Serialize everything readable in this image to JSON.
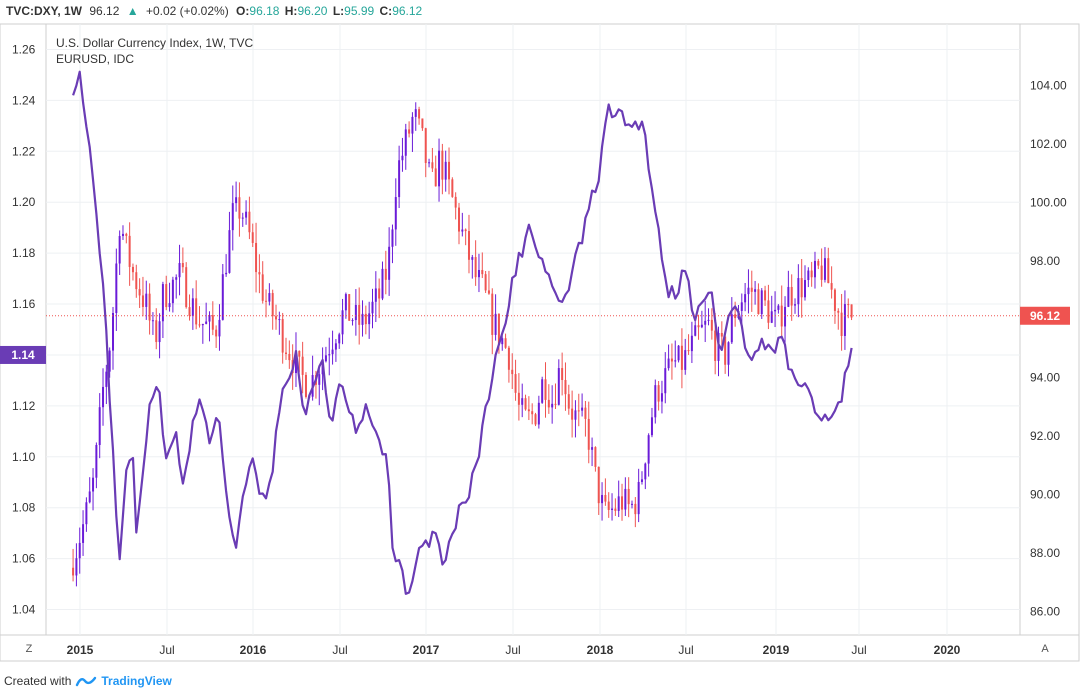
{
  "header": {
    "symbol": "TVC:DXY, 1W",
    "last": "96.12",
    "change": "+0.02 (+0.02%)",
    "o_label": "O:",
    "o": "96.18",
    "h_label": "H:",
    "h": "96.20",
    "l_label": "L:",
    "l": "95.99",
    "c_label": "C:",
    "c": "96.12"
  },
  "legend": {
    "primary": "U.S. Dollar Currency Index, 1W, TVC",
    "secondary": "EURUSD, IDC"
  },
  "footer": {
    "created_with": "Created with",
    "brand": "TradingView"
  },
  "buttons": {
    "zoom": "Z",
    "auto": "A"
  },
  "badges": {
    "left_value": "1.14",
    "right_value": "96.12"
  },
  "colors": {
    "up": "#6a1bd8",
    "down": "#ef5350",
    "eurusd_line": "#6a3cb5",
    "left_badge": "#6a3cb5",
    "right_badge": "#ef5350"
  },
  "chart_data": {
    "type": "line",
    "x_ticks": [
      "2015",
      "Jul",
      "2016",
      "Jul",
      "2017",
      "Jul",
      "2018",
      "Jul",
      "2019",
      "Jul",
      "2020"
    ],
    "left_axis": {
      "ticks": [
        "1.04",
        "1.06",
        "1.08",
        "1.10",
        "1.12",
        "1.14",
        "1.16",
        "1.18",
        "1.20",
        "1.22",
        "1.24",
        "1.26"
      ],
      "range": [
        1.03,
        1.27
      ]
    },
    "right_axis": {
      "ticks": [
        "86.00",
        "88.00",
        "90.00",
        "92.00",
        "94.00",
        "96.00",
        "98.00",
        "100.00",
        "102.00",
        "104.00"
      ],
      "range": [
        85.2,
        106.1
      ]
    },
    "dxy_anchors": [
      [
        2014.96,
        87.5
      ],
      [
        2015.0,
        88.2
      ],
      [
        2015.05,
        89.2
      ],
      [
        2015.1,
        90.5
      ],
      [
        2015.15,
        93.5
      ],
      [
        2015.2,
        95.5
      ],
      [
        2015.25,
        99.5
      ],
      [
        2015.28,
        98.5
      ],
      [
        2015.33,
        97.5
      ],
      [
        2015.4,
        96.5
      ],
      [
        2015.45,
        95.2
      ],
      [
        2015.5,
        96.8
      ],
      [
        2015.6,
        97.5
      ],
      [
        2015.7,
        96.0
      ],
      [
        2015.8,
        95.5
      ],
      [
        2015.9,
        99.5
      ],
      [
        2015.95,
        99.8
      ],
      [
        2016.0,
        98.8
      ],
      [
        2016.05,
        97.5
      ],
      [
        2016.1,
        96.5
      ],
      [
        2016.15,
        96.0
      ],
      [
        2016.2,
        95.3
      ],
      [
        2016.3,
        94.0
      ],
      [
        2016.35,
        93.8
      ],
      [
        2016.45,
        95.0
      ],
      [
        2016.55,
        96.3
      ],
      [
        2016.65,
        95.8
      ],
      [
        2016.75,
        96.8
      ],
      [
        2016.8,
        97.8
      ],
      [
        2016.85,
        101.0
      ],
      [
        2016.95,
        103.0
      ],
      [
        2017.0,
        102.0
      ],
      [
        2017.05,
        100.5
      ],
      [
        2017.1,
        101.5
      ],
      [
        2017.15,
        100.5
      ],
      [
        2017.2,
        99.5
      ],
      [
        2017.3,
        97.5
      ],
      [
        2017.35,
        97.0
      ],
      [
        2017.4,
        96.0
      ],
      [
        2017.5,
        94.8
      ],
      [
        2017.55,
        93.0
      ],
      [
        2017.6,
        92.5
      ],
      [
        2017.65,
        92.8
      ],
      [
        2017.7,
        94.0
      ],
      [
        2017.75,
        93.2
      ],
      [
        2017.8,
        94.5
      ],
      [
        2017.85,
        93.0
      ],
      [
        2017.9,
        92.5
      ],
      [
        2017.95,
        92.3
      ],
      [
        2018.0,
        90.5
      ],
      [
        2018.05,
        89.3
      ],
      [
        2018.1,
        89.5
      ],
      [
        2018.15,
        89.8
      ],
      [
        2018.2,
        89.5
      ],
      [
        2018.25,
        90.0
      ],
      [
        2018.3,
        92.0
      ],
      [
        2018.35,
        93.5
      ],
      [
        2018.4,
        94.0
      ],
      [
        2018.45,
        94.5
      ],
      [
        2018.5,
        94.5
      ],
      [
        2018.55,
        95.0
      ],
      [
        2018.6,
        95.5
      ],
      [
        2018.65,
        95.8
      ],
      [
        2018.7,
        95.0
      ],
      [
        2018.75,
        94.8
      ],
      [
        2018.8,
        96.2
      ],
      [
        2018.85,
        96.8
      ],
      [
        2018.9,
        97.0
      ],
      [
        2019.0,
        96.3
      ],
      [
        2019.05,
        95.8
      ],
      [
        2019.1,
        96.8
      ],
      [
        2019.15,
        97.0
      ],
      [
        2019.2,
        97.2
      ],
      [
        2019.25,
        97.2
      ],
      [
        2019.3,
        97.8
      ],
      [
        2019.35,
        97.2
      ],
      [
        2019.42,
        96.0
      ],
      [
        2019.46,
        96.1
      ]
    ],
    "eurusd_anchors": [
      [
        2014.96,
        1.245
      ],
      [
        2015.0,
        1.252
      ],
      [
        2015.03,
        1.233
      ],
      [
        2015.06,
        1.218
      ],
      [
        2015.1,
        1.195
      ],
      [
        2015.15,
        1.15
      ],
      [
        2015.2,
        1.09
      ],
      [
        2015.23,
        1.058
      ],
      [
        2015.26,
        1.09
      ],
      [
        2015.3,
        1.105
      ],
      [
        2015.33,
        1.067
      ],
      [
        2015.37,
        1.1
      ],
      [
        2015.41,
        1.123
      ],
      [
        2015.45,
        1.13
      ],
      [
        2015.5,
        1.096
      ],
      [
        2015.55,
        1.112
      ],
      [
        2015.6,
        1.087
      ],
      [
        2015.65,
        1.113
      ],
      [
        2015.7,
        1.123
      ],
      [
        2015.75,
        1.105
      ],
      [
        2015.8,
        1.12
      ],
      [
        2015.85,
        1.082
      ],
      [
        2015.9,
        1.063
      ],
      [
        2015.95,
        1.087
      ],
      [
        2016.0,
        1.102
      ],
      [
        2016.05,
        1.083
      ],
      [
        2016.1,
        1.088
      ],
      [
        2016.15,
        1.12
      ],
      [
        2016.2,
        1.13
      ],
      [
        2016.25,
        1.14
      ],
      [
        2016.3,
        1.115
      ],
      [
        2016.35,
        1.128
      ],
      [
        2016.4,
        1.14
      ],
      [
        2016.45,
        1.11
      ],
      [
        2016.5,
        1.128
      ],
      [
        2016.55,
        1.12
      ],
      [
        2016.6,
        1.108
      ],
      [
        2016.65,
        1.118
      ],
      [
        2016.7,
        1.113
      ],
      [
        2016.75,
        1.098
      ],
      [
        2016.78,
        1.105
      ],
      [
        2016.8,
        1.063
      ],
      [
        2016.85,
        1.06
      ],
      [
        2016.88,
        1.045
      ],
      [
        2016.92,
        1.048
      ],
      [
        2016.95,
        1.062
      ],
      [
        2017.0,
        1.065
      ],
      [
        2017.05,
        1.072
      ],
      [
        2017.1,
        1.058
      ],
      [
        2017.15,
        1.07
      ],
      [
        2017.2,
        1.08
      ],
      [
        2017.25,
        1.087
      ],
      [
        2017.3,
        1.1
      ],
      [
        2017.35,
        1.12
      ],
      [
        2017.4,
        1.14
      ],
      [
        2017.45,
        1.148
      ],
      [
        2017.5,
        1.17
      ],
      [
        2017.55,
        1.18
      ],
      [
        2017.6,
        1.192
      ],
      [
        2017.65,
        1.18
      ],
      [
        2017.7,
        1.173
      ],
      [
        2017.75,
        1.163
      ],
      [
        2017.8,
        1.16
      ],
      [
        2017.85,
        1.175
      ],
      [
        2017.9,
        1.185
      ],
      [
        2017.95,
        1.2
      ],
      [
        2018.0,
        1.21
      ],
      [
        2018.05,
        1.237
      ],
      [
        2018.1,
        1.235
      ],
      [
        2018.15,
        1.232
      ],
      [
        2018.2,
        1.23
      ],
      [
        2018.25,
        1.232
      ],
      [
        2018.3,
        1.21
      ],
      [
        2018.35,
        1.185
      ],
      [
        2018.4,
        1.165
      ],
      [
        2018.45,
        1.165
      ],
      [
        2018.5,
        1.175
      ],
      [
        2018.55,
        1.155
      ],
      [
        2018.6,
        1.16
      ],
      [
        2018.65,
        1.165
      ],
      [
        2018.7,
        1.14
      ],
      [
        2018.75,
        1.155
      ],
      [
        2018.8,
        1.16
      ],
      [
        2018.85,
        1.14
      ],
      [
        2018.9,
        1.138
      ],
      [
        2018.95,
        1.145
      ],
      [
        2019.0,
        1.14
      ],
      [
        2019.05,
        1.148
      ],
      [
        2019.1,
        1.135
      ],
      [
        2019.15,
        1.125
      ],
      [
        2019.2,
        1.13
      ],
      [
        2019.25,
        1.12
      ],
      [
        2019.3,
        1.115
      ],
      [
        2019.35,
        1.118
      ],
      [
        2019.4,
        1.12
      ],
      [
        2019.43,
        1.135
      ],
      [
        2019.46,
        1.14
      ]
    ]
  }
}
